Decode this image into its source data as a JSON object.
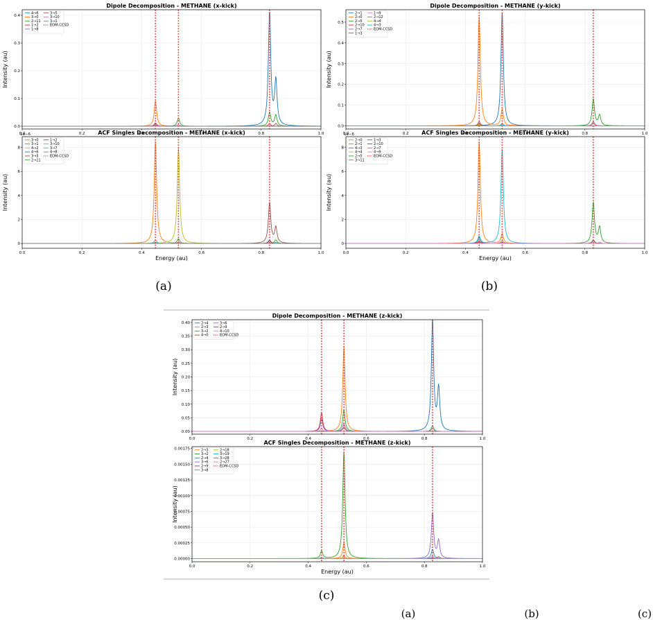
{
  "figure": {
    "sublabels": [
      "(a)",
      "(b)",
      "(c)"
    ],
    "caption_tail": [
      "(a)",
      "(b)",
      "(c)"
    ]
  },
  "chart_data": [
    {
      "id": "a_top",
      "type": "line",
      "title": "Dipole Decomposition - METHANE (x-kick)",
      "xlabel": "",
      "ylabel": "Intensity (au)",
      "xlim": [
        0.0,
        1.0
      ],
      "ylim": [
        -0.01,
        0.42
      ],
      "xticks": [
        "0.0",
        "0.2",
        "0.4",
        "0.6",
        "0.8",
        "1.0"
      ],
      "xtick_values": [
        0,
        0.2,
        0.4,
        0.6,
        0.8,
        1.0
      ],
      "yticks": [
        "0.0",
        "0.1",
        "0.2",
        "0.3",
        "0.4"
      ],
      "ytick_values": [
        0,
        0.1,
        0.2,
        0.3,
        0.4
      ],
      "yexp": "",
      "legend_cols": 2,
      "legend_placement": "top-left",
      "grid": true,
      "reference_lines": {
        "name": "EOM-CCSD",
        "x": [
          0.446,
          0.523,
          0.828
        ],
        "color": "#e8302c"
      },
      "series": [
        {
          "name": "4→6",
          "color": "#1f77b4",
          "peaks": [
            [
              0.828,
              0.41
            ],
            [
              0.849,
              0.16
            ]
          ]
        },
        {
          "name": "3→0",
          "color": "#ff7f0e",
          "peaks": [
            [
              0.446,
              0.092
            ]
          ]
        },
        {
          "name": "2→11",
          "color": "#2ca02c",
          "peaks": [
            [
              0.523,
              0.03
            ],
            [
              0.828,
              0.05
            ],
            [
              0.849,
              0.04
            ]
          ]
        },
        {
          "name": "1→2",
          "color": "#d62728",
          "peaks": [
            [
              0.446,
              0.012
            ],
            [
              0.828,
              0.008
            ]
          ]
        },
        {
          "name": "1→8",
          "color": "#9467bd",
          "peaks": [
            [
              0.446,
              0.006
            ],
            [
              0.523,
              0.006
            ]
          ]
        },
        {
          "name": "3→5",
          "color": "#8c564b",
          "peaks": [
            [
              0.849,
              0.01
            ]
          ]
        },
        {
          "name": "3→10",
          "color": "#e377c2",
          "peaks": [
            [
              0.523,
              0.005
            ]
          ]
        },
        {
          "name": "3→1",
          "color": "#7f7f7f",
          "peaks": [
            [
              0.446,
              0.004
            ]
          ]
        }
      ]
    },
    {
      "id": "a_bottom",
      "type": "line",
      "title": "ACF Singles Decomposition - METHANE (x-kick)",
      "xlabel": "Energy (au)",
      "ylabel": "Intensity (au)",
      "xlim": [
        0.0,
        1.0
      ],
      "ylim": [
        -0.4,
        8.9
      ],
      "xticks": [
        "0.0",
        "0.2",
        "0.4",
        "0.6",
        "0.8",
        "1.0"
      ],
      "xtick_values": [
        0,
        0.2,
        0.4,
        0.6,
        0.8,
        1.0
      ],
      "yticks": [
        "0",
        "2",
        "4",
        "6",
        "8"
      ],
      "ytick_values": [
        0,
        2,
        4,
        6,
        8
      ],
      "yexp": "1e−6",
      "legend_cols": 2,
      "legend_placement": "top-left",
      "grid": true,
      "reference_lines": {
        "name": "EOM-CCSD",
        "x": [
          0.446,
          0.523,
          0.828
        ],
        "color": "#e8302c"
      },
      "series": [
        {
          "name": "3→0",
          "color": "#ff7f0e",
          "peaks": [
            [
              0.446,
              8.5
            ]
          ]
        },
        {
          "name": "3→1",
          "color": "#7f7f7f",
          "peaks": [
            [
              0.446,
              0.3
            ]
          ]
        },
        {
          "name": "4→2",
          "color": "#bcbd22",
          "peaks": [
            [
              0.523,
              8.0
            ]
          ]
        },
        {
          "name": "4→6",
          "color": "#1f77b4",
          "peaks": [
            [
              0.828,
              0.3
            ]
          ]
        },
        {
          "name": "3→5",
          "color": "#8c564b",
          "peaks": [
            [
              0.828,
              3.4
            ],
            [
              0.849,
              1.3
            ]
          ]
        },
        {
          "name": "2→11",
          "color": "#2ca02c",
          "peaks": [
            [
              0.523,
              0.4
            ],
            [
              0.849,
              0.3
            ]
          ]
        },
        {
          "name": "1→2",
          "color": "#d62728",
          "peaks": [
            [
              0.828,
              0.2
            ]
          ]
        },
        {
          "name": "3→10",
          "color": "#e377c2",
          "peaks": [
            [
              0.523,
              0.15
            ]
          ]
        },
        {
          "name": "3→7",
          "color": "#17becf",
          "peaks": [
            [
              0.446,
              0.1
            ]
          ]
        },
        {
          "name": "4→8",
          "color": "#7f7f7f",
          "peaks": [
            [
              0.849,
              0.1
            ]
          ]
        }
      ]
    },
    {
      "id": "b_top",
      "type": "line",
      "title": "Dipole Decomposition - METHANE (y-kick)",
      "xlabel": "",
      "ylabel": "Intensity (au)",
      "xlim": [
        0.0,
        1.0
      ],
      "ylim": [
        -0.015,
        0.56
      ],
      "xticks": [
        "0.0",
        "0.2",
        "0.4",
        "0.6",
        "0.8",
        "1.0"
      ],
      "xtick_values": [
        0,
        0.2,
        0.4,
        0.6,
        0.8,
        1.0
      ],
      "yticks": [
        "0.0",
        "0.1",
        "0.2",
        "0.3",
        "0.4",
        "0.5"
      ],
      "ytick_values": [
        0,
        0.1,
        0.2,
        0.3,
        0.4,
        0.5
      ],
      "yexp": "",
      "legend_cols": 2,
      "legend_placement": "top-left",
      "grid": true,
      "reference_lines": {
        "name": "EOM-CCSD",
        "x": [
          0.446,
          0.523,
          0.828
        ],
        "color": "#e8302c"
      },
      "series": [
        {
          "name": "2→1",
          "color": "#1f77b4",
          "peaks": [
            [
              0.523,
              0.545
            ]
          ]
        },
        {
          "name": "2→0",
          "color": "#ff7f0e",
          "peaks": [
            [
              0.446,
              0.53
            ],
            [
              0.523,
              0.08
            ]
          ]
        },
        {
          "name": "2→5",
          "color": "#2ca02c",
          "peaks": [
            [
              0.828,
              0.13
            ],
            [
              0.849,
              0.05
            ]
          ]
        },
        {
          "name": "2→10",
          "color": "#d62728",
          "peaks": [
            [
              0.446,
              0.01
            ]
          ]
        },
        {
          "name": "2→7",
          "color": "#9467bd",
          "peaks": [
            [
              0.523,
              0.01
            ]
          ]
        },
        {
          "name": "1→3",
          "color": "#8c564b",
          "peaks": [
            [
              0.446,
              0.02
            ],
            [
              0.828,
              0.02
            ]
          ]
        },
        {
          "name": "1→9",
          "color": "#e377c2",
          "peaks": [
            [
              0.828,
              0.01
            ]
          ]
        },
        {
          "name": "2→12",
          "color": "#7f7f7f",
          "peaks": [
            [
              0.523,
              0.01
            ]
          ]
        },
        {
          "name": "4→4",
          "color": "#bcbd22",
          "peaks": [
            [
              0.446,
              0.005
            ]
          ]
        },
        {
          "name": "4→3",
          "color": "#17becf",
          "peaks": [
            [
              0.523,
              0.005
            ]
          ]
        }
      ]
    },
    {
      "id": "b_bottom",
      "type": "line",
      "title": "ACF Singles Decomposition - METHANE (y-kick)",
      "xlabel": "Energy (au)",
      "ylabel": "Intensity (au)",
      "xlim": [
        0.0,
        1.0
      ],
      "ylim": [
        -0.4,
        8.9
      ],
      "xticks": [
        "0.0",
        "0.2",
        "0.4",
        "0.6",
        "0.8",
        "1.0"
      ],
      "xtick_values": [
        0,
        0.2,
        0.4,
        0.6,
        0.8,
        1.0
      ],
      "yticks": [
        "0",
        "2",
        "4",
        "6",
        "8"
      ],
      "ytick_values": [
        0,
        2,
        4,
        6,
        8
      ],
      "yexp": "1e−6",
      "legend_cols": 2,
      "legend_placement": "top-left",
      "grid": true,
      "reference_lines": {
        "name": "EOM-CCSD",
        "x": [
          0.446,
          0.523,
          0.828
        ],
        "color": "#e8302c"
      },
      "series": [
        {
          "name": "2→0",
          "color": "#ff7f0e",
          "peaks": [
            [
              0.446,
              8.5
            ],
            [
              0.523,
              0.8
            ]
          ]
        },
        {
          "name": "2→1",
          "color": "#17becf",
          "peaks": [
            [
              0.523,
              7.9
            ],
            [
              0.446,
              0.6
            ]
          ]
        },
        {
          "name": "4→3",
          "color": "#1f77b4",
          "peaks": [
            [
              0.446,
              0.5
            ]
          ]
        },
        {
          "name": "4→4",
          "color": "#bcbd22",
          "peaks": [
            [
              0.523,
              0.3
            ]
          ]
        },
        {
          "name": "2→5",
          "color": "#2ca02c",
          "peaks": [
            [
              0.828,
              3.4
            ],
            [
              0.849,
              1.3
            ]
          ]
        },
        {
          "name": "3→11",
          "color": "#7f7f7f",
          "peaks": [
            [
              0.828,
              0.2
            ]
          ]
        },
        {
          "name": "1→3",
          "color": "#8c564b",
          "peaks": [
            [
              0.446,
              0.2
            ],
            [
              0.828,
              0.3
            ]
          ]
        },
        {
          "name": "2→10",
          "color": "#d62728",
          "peaks": [
            [
              0.446,
              0.15
            ]
          ]
        },
        {
          "name": "2→7",
          "color": "#9467bd",
          "peaks": [
            [
              0.523,
              0.15
            ]
          ]
        },
        {
          "name": "4→9",
          "color": "#e377c2",
          "peaks": [
            [
              0.849,
              0.1
            ]
          ]
        }
      ]
    },
    {
      "id": "c_top",
      "type": "line",
      "title": "Dipole Decomposition - METHANE (z-kick)",
      "xlabel": "",
      "ylabel": "Intensity (au)",
      "xlim": [
        0.0,
        1.0
      ],
      "ylim": [
        -0.01,
        0.41
      ],
      "xticks": [
        "0.0",
        "0.2",
        "0.4",
        "0.6",
        "0.8",
        "1.0"
      ],
      "xtick_values": [
        0,
        0.2,
        0.4,
        0.6,
        0.8,
        1.0
      ],
      "yticks": [
        "0.00",
        "0.05",
        "0.10",
        "0.15",
        "0.20",
        "0.25",
        "0.30",
        "0.35",
        "0.40"
      ],
      "ytick_values": [
        0,
        0.05,
        0.1,
        0.15,
        0.2,
        0.25,
        0.3,
        0.35,
        0.4
      ],
      "yexp": "",
      "legend_cols": 2,
      "legend_placement": "top-left",
      "grid": true,
      "reference_lines": {
        "name": "EOM-CCSD",
        "x": [
          0.446,
          0.523,
          0.828
        ],
        "color": "#e8302c"
      },
      "series": [
        {
          "name": "2→4",
          "color": "#1f77b4",
          "peaks": [
            [
              0.828,
              0.405
            ],
            [
              0.849,
              0.155
            ]
          ]
        },
        {
          "name": "2→3",
          "color": "#ff7f0e",
          "peaks": [
            [
              0.523,
              0.31
            ]
          ]
        },
        {
          "name": "3→2",
          "color": "#2ca02c",
          "peaks": [
            [
              0.523,
              0.08
            ],
            [
              0.828,
              0.02
            ]
          ]
        },
        {
          "name": "4→0",
          "color": "#d62728",
          "peaks": [
            [
              0.446,
              0.068
            ]
          ]
        },
        {
          "name": "3→6",
          "color": "#9467bd",
          "peaks": [
            [
              0.446,
              0.045
            ],
            [
              0.523,
              0.03
            ]
          ]
        },
        {
          "name": "2→9",
          "color": "#8c564b",
          "peaks": [
            [
              0.523,
              0.015
            ]
          ]
        },
        {
          "name": "4→10",
          "color": "#e377c2",
          "peaks": [
            [
              0.446,
              0.01
            ],
            [
              0.828,
              0.01
            ]
          ]
        }
      ]
    },
    {
      "id": "c_bottom",
      "type": "line",
      "title": "ACF Singles Decomposition - METHANE (z-kick)",
      "xlabel": "Energy (au)",
      "ylabel": "Intensity (au)",
      "xlim": [
        0.0,
        1.0
      ],
      "ylim": [
        -5e-05,
        0.00178
      ],
      "xticks": [
        "0.0",
        "0.2",
        "0.4",
        "0.6",
        "0.8",
        "1.0"
      ],
      "xtick_values": [
        0,
        0.2,
        0.4,
        0.6,
        0.8,
        1.0
      ],
      "yticks": [
        "0.00000",
        "0.00025",
        "0.00050",
        "0.00075",
        "0.00100",
        "0.00125",
        "0.00150",
        "0.00175"
      ],
      "ytick_values": [
        0,
        0.00025,
        0.0005,
        0.00075,
        0.001,
        0.00125,
        0.0015,
        0.00175
      ],
      "yexp": "",
      "legend_cols": 2,
      "legend_placement": "top-left",
      "grid": true,
      "reference_lines": {
        "name": "EOM-CCSD",
        "x": [
          0.446,
          0.523,
          0.828
        ],
        "color": "#e8302c"
      },
      "series": [
        {
          "name": "2→3",
          "color": "#ff7f0e",
          "peaks": [
            [
              0.523,
              0.00025
            ]
          ]
        },
        {
          "name": "3→2",
          "color": "#2ca02c",
          "peaks": [
            [
              0.523,
              0.0017
            ],
            [
              0.446,
              0.00012
            ]
          ]
        },
        {
          "name": "2→4",
          "color": "#1f77b4",
          "peaks": [
            [
              0.828,
              0.00015
            ]
          ]
        },
        {
          "name": "3→6",
          "color": "#9467bd",
          "peaks": [
            [
              0.828,
              0.00072
            ],
            [
              0.849,
              0.00028
            ]
          ]
        },
        {
          "name": "2→9",
          "color": "#d62728",
          "peaks": [
            [
              0.523,
              4e-05
            ]
          ]
        },
        {
          "name": "3→8",
          "color": "#7f7f7f",
          "peaks": [
            [
              0.446,
              2e-05
            ]
          ]
        },
        {
          "name": "2→18",
          "color": "#bcbd22",
          "peaks": [
            [
              0.523,
              5e-05
            ]
          ]
        },
        {
          "name": "3→19",
          "color": "#17becf",
          "peaks": [
            [
              0.828,
              3e-05
            ]
          ]
        },
        {
          "name": "3→28",
          "color": "#8c564b",
          "peaks": [
            [
              0.849,
              3e-05
            ]
          ]
        },
        {
          "name": "2→27",
          "color": "#e377c2",
          "peaks": [
            [
              0.828,
              4e-05
            ]
          ]
        }
      ]
    }
  ]
}
